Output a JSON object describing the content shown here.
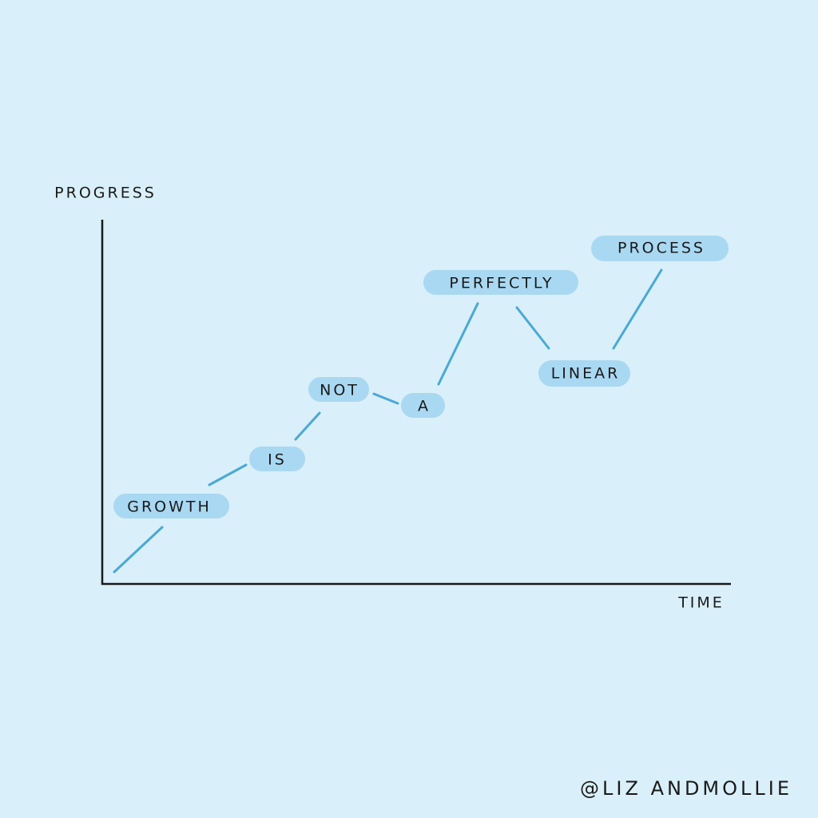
{
  "axes": {
    "y_label": "PROGRESS",
    "x_label": "TIME"
  },
  "words": [
    "GROWTH",
    "IS",
    "NOT",
    "A",
    "PERFECTLY",
    "LINEAR",
    "PROCESS"
  ],
  "credit": "@LIZ ANDMOLLIE"
}
